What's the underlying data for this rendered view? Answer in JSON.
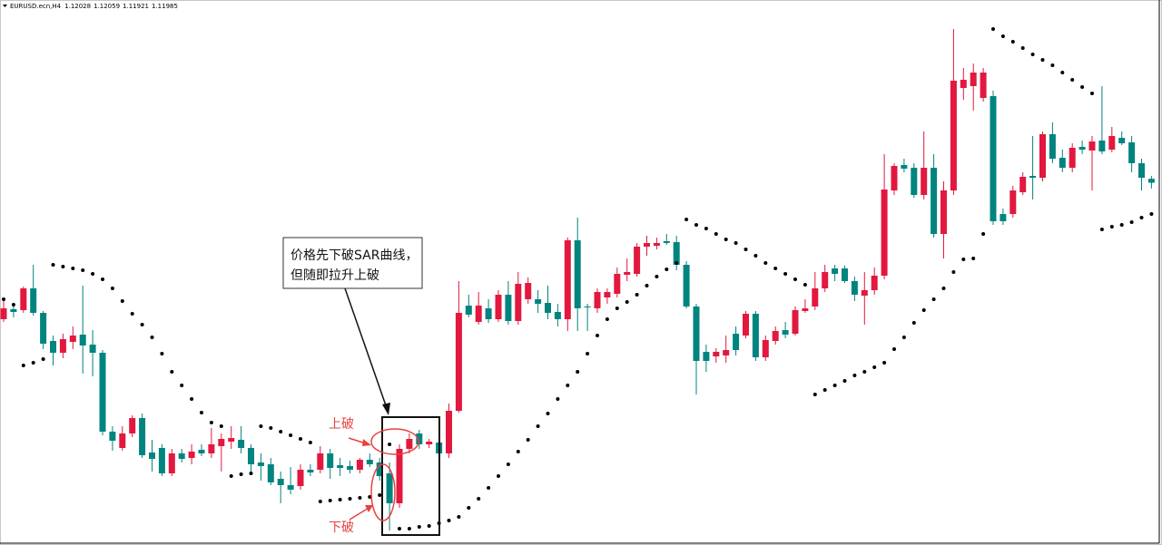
{
  "chart_data": {
    "type": "candlestick",
    "symbol": "EURUSD.ecn,H4",
    "callout": [
      "价格先下破SAR曲线，",
      "但随即拉升上破"
    ],
    "labels": [
      "上破",
      "下破"
    ],
    "up_color": "#e2183f",
    "down_color": "#00847f",
    "sar_color": "#000000",
    "ylim": [
      1.08,
      1.14
    ],
    "open": [
      1.1048,
      1.1059,
      1.1058,
      1.1082,
      1.1055,
      1.1024,
      1.1011,
      1.1023,
      1.1031,
      1.102,
      1.1011,
      1.0924,
      1.0906,
      1.0922,
      1.0939,
      1.0901,
      1.0906,
      1.0878,
      1.09,
      1.0895,
      1.0904,
      1.09,
      1.0908,
      1.0913,
      1.0915,
      1.0906,
      1.089,
      1.0888,
      1.0872,
      1.0865,
      1.0864,
      1.0882,
      1.0882,
      1.09,
      1.0887,
      1.0886,
      1.0882,
      1.0893,
      1.089,
      1.0878,
      1.0845,
      1.0905,
      1.0922,
      1.091,
      1.0912,
      1.09,
      1.0947,
      1.1063,
      1.1045,
      1.106,
      1.1048,
      1.1075,
      1.1046,
      1.107,
      1.107,
      1.1066,
      1.1056,
      1.1048,
      1.1135,
      1.1062,
      1.106,
      1.1072,
      1.1076,
      1.1097,
      1.1098,
      1.1128,
      1.1129,
      1.1134,
      1.1133,
      1.1108,
      1.1062,
      1.1012,
      1.1007,
      1.1008,
      1.1032,
      1.103,
      1.1054,
      1.1006,
      1.1024,
      1.1036,
      1.1032,
      1.1057,
      1.1062,
      1.1082,
      1.1104,
      1.1104,
      1.109,
      1.1074,
      1.108,
      1.1096,
      1.119,
      1.1218,
      1.1215,
      1.1185,
      1.1215,
      1.1142,
      1.119,
      1.1303,
      1.1305,
      1.1292,
      1.1294,
      1.1164,
      1.1164,
      1.1188,
      1.1206,
      1.1204,
      1.1252,
      1.1226,
      1.1215,
      1.1238,
      1.1234,
      1.1245,
      1.1235,
      1.1248,
      1.1243,
      1.122,
      1.12028
    ],
    "high": [
      1.107,
      1.1066,
      1.1084,
      1.1108,
      1.1057,
      1.103,
      1.1032,
      1.104,
      1.1085,
      1.1036,
      1.1014,
      1.093,
      1.093,
      1.0942,
      1.0944,
      1.0915,
      1.091,
      1.0905,
      1.0905,
      1.091,
      1.091,
      1.0928,
      1.0922,
      1.093,
      1.093,
      1.091,
      1.09,
      1.0895,
      1.088,
      1.0885,
      1.0888,
      1.0888,
      1.0908,
      1.0905,
      1.0895,
      1.0892,
      1.0895,
      1.09,
      1.0895,
      1.089,
      1.091,
      1.0922,
      1.0926,
      1.0916,
      1.0916,
      1.0955,
      1.109,
      1.1075,
      1.1078,
      1.107,
      1.108,
      1.109,
      1.11,
      1.1094,
      1.108,
      1.1085,
      1.1065,
      1.1138,
      1.116,
      1.1065,
      1.1082,
      1.1082,
      1.1105,
      1.1115,
      1.1132,
      1.114,
      1.1138,
      1.1142,
      1.114,
      1.1112,
      1.1065,
      1.102,
      1.1016,
      1.103,
      1.104,
      1.1057,
      1.1057,
      1.103,
      1.104,
      1.1045,
      1.1062,
      1.107,
      1.11,
      1.1108,
      1.1108,
      1.1107,
      1.1095,
      1.11,
      1.1105,
      1.123,
      1.122,
      1.1225,
      1.122,
      1.1255,
      1.123,
      1.12,
      1.1368,
      1.1325,
      1.133,
      1.1325,
      1.13,
      1.117,
      1.1195,
      1.121,
      1.125,
      1.1255,
      1.1265,
      1.1235,
      1.1242,
      1.1245,
      1.125,
      1.1305,
      1.126,
      1.1255,
      1.125,
      1.1225,
      1.12059
    ],
    "low": [
      1.1045,
      1.105,
      1.1055,
      1.1052,
      1.1015,
      1.0997,
      1.1005,
      1.1015,
      1.0988,
      1.0985,
      1.092,
      1.0903,
      1.0903,
      1.0918,
      1.0895,
      1.088,
      1.0875,
      1.0875,
      1.089,
      1.0888,
      1.0897,
      1.0895,
      1.088,
      1.0905,
      1.09,
      1.088,
      1.087,
      1.0865,
      1.0845,
      1.0855,
      1.086,
      1.0875,
      1.0878,
      1.0872,
      1.0875,
      1.0878,
      1.0878,
      1.0885,
      1.087,
      1.0815,
      1.084,
      1.09,
      1.0905,
      1.0906,
      1.087,
      1.0895,
      1.0945,
      1.105,
      1.1042,
      1.1044,
      1.1045,
      1.1042,
      1.1042,
      1.1065,
      1.1055,
      1.1048,
      1.104,
      1.1035,
      1.1035,
      1.1035,
      1.1055,
      1.1065,
      1.1072,
      1.109,
      1.1095,
      1.1118,
      1.1125,
      1.113,
      1.1102,
      1.106,
      1.0965,
      1.099,
      1.1,
      1.1,
      1.1008,
      1.1027,
      1.1002,
      1.1002,
      1.102,
      1.1027,
      1.103,
      1.1055,
      1.1058,
      1.1078,
      1.109,
      1.1088,
      1.1068,
      1.1042,
      1.1075,
      1.1092,
      1.1185,
      1.121,
      1.1182,
      1.118,
      1.1138,
      1.1115,
      1.1185,
      1.129,
      1.1278,
      1.1288,
      1.1152,
      1.1152,
      1.116,
      1.1185,
      1.118,
      1.12,
      1.122,
      1.121,
      1.121,
      1.123,
      1.119,
      1.123,
      1.1232,
      1.124,
      1.121,
      1.119,
      1.11921
    ],
    "close": [
      1.106,
      1.1056,
      1.1082,
      1.1055,
      1.1021,
      1.1011,
      1.1026,
      1.103,
      1.1019,
      1.1011,
      1.0924,
      1.0914,
      1.0922,
      1.0939,
      1.0898,
      1.0894,
      1.0878,
      1.09,
      1.0894,
      1.0902,
      1.09,
      1.091,
      1.0916,
      1.0917,
      1.0906,
      1.0888,
      1.0886,
      1.0868,
      1.0865,
      1.086,
      1.0882,
      1.0879,
      1.09,
      1.0884,
      1.0884,
      1.0882,
      1.0893,
      1.0888,
      1.0875,
      1.0845,
      1.0905,
      1.0916,
      1.091,
      1.0913,
      1.09,
      1.0947,
      1.1055,
      1.1053,
      1.1063,
      1.1048,
      1.1075,
      1.1046,
      1.1087,
      1.1088,
      1.1065,
      1.1055,
      1.1048,
      1.1135,
      1.106,
      1.1061,
      1.1078,
      1.1078,
      1.1098,
      1.11,
      1.1128,
      1.1132,
      1.1132,
      1.1132,
      1.1108,
      1.1062,
      1.1002,
      1.1002,
      1.1012,
      1.1014,
      1.1014,
      1.1054,
      1.1006,
      1.1025,
      1.1035,
      1.1031,
      1.1058,
      1.106,
      1.1082,
      1.11,
      1.1098,
      1.109,
      1.1075,
      1.108,
      1.1096,
      1.1191,
      1.1217,
      1.1214,
      1.1185,
      1.1215,
      1.1142,
      1.119,
      1.1311,
      1.1312,
      1.132,
      1.132,
      1.1156,
      1.1156,
      1.119,
      1.1205,
      1.1204,
      1.1252,
      1.1225,
      1.1215,
      1.1237,
      1.1235,
      1.1244,
      1.1233,
      1.125,
      1.1242,
      1.122,
      1.1204,
      1.11985
    ],
    "sar": [
      1.107,
      1.1064,
      1.0997,
      1.1,
      1.1004,
      1.1108,
      1.1106,
      1.1104,
      1.1102,
      1.1098,
      1.1092,
      1.1082,
      1.1068,
      1.1054,
      1.1042,
      1.1028,
      1.101,
      1.099,
      1.0975,
      1.096,
      1.0945,
      1.0934,
      1.093,
      1.0875,
      1.0877,
      1.0878,
      1.093,
      1.0928,
      1.0924,
      1.092,
      1.0916,
      1.0912,
      1.0847,
      1.0848,
      1.0849,
      1.085,
      1.0851,
      1.0852,
      1.0854,
      1.091,
      1.0817,
      1.0817,
      1.0819,
      1.082,
      1.0823,
      1.0826,
      1.083,
      1.084,
      1.085,
      1.0862,
      1.0875,
      1.0888,
      1.0902,
      1.0915,
      1.093,
      1.0944,
      1.096,
      1.0975,
      1.099,
      1.101,
      1.103,
      1.1048,
      1.106,
      1.1067,
      1.1075,
      1.1085,
      1.1095,
      1.1103,
      1.111,
      1.1158,
      1.1152,
      1.1148,
      1.1142,
      1.1136,
      1.1132,
      1.1125,
      1.1118,
      1.111,
      1.1104,
      1.1098,
      1.1092,
      1.1086,
      1.0965,
      1.097,
      1.0975,
      1.098,
      1.0986,
      1.099,
      1.0995,
      1.1,
      1.1015,
      1.1028,
      1.1044,
      1.1058,
      1.107,
      1.1082,
      1.11,
      1.1114,
      1.1115,
      1.1142,
      1.1368,
      1.136,
      1.1354,
      1.1347,
      1.134,
      1.1334,
      1.1328,
      1.132,
      1.1312,
      1.1304,
      1.1297,
      1.1147,
      1.115,
      1.1152,
      1.1155,
      1.116,
      1.1164
    ]
  }
}
